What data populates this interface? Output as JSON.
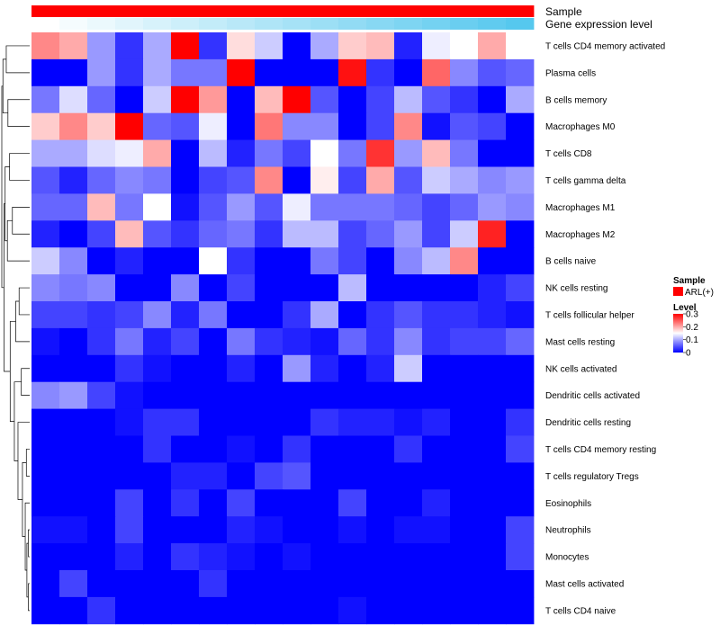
{
  "chart_data": {
    "type": "heatmap",
    "title": "",
    "annotations": {
      "top": [
        {
          "name": "Sample",
          "kind": "categorical",
          "label": "Sample"
        },
        {
          "name": "Gene expression level",
          "kind": "gradient",
          "label": "Gene expression level",
          "low_color": "#ffffff",
          "high_color": "#56c8ee"
        }
      ]
    },
    "row_labels": [
      "T cells CD4 memory activated",
      "Plasma cells",
      "B cells memory",
      "Macrophages M0",
      "T cells CD8",
      "T cells gamma delta",
      "Macrophages M1",
      "Macrophages M2",
      "B cells naive",
      "NK cells resting",
      "T cells follicular helper",
      "Mast cells resting",
      "NK cells activated",
      "Dendritic cells activated",
      "Dendritic cells resting",
      "T cells CD4 memory resting",
      "T cells regulatory  Tregs",
      "Eosinophils",
      "Neutrophils",
      "Monocytes",
      "Mast cells activated",
      "T cells CD4 naive"
    ],
    "n_columns": 18,
    "values": [
      [
        0.22,
        0.2,
        0.09,
        0.03,
        0.1,
        0.3,
        0.03,
        0.17,
        0.12,
        0.0,
        0.1,
        0.18,
        0.19,
        0.02,
        0.14,
        0.15,
        0.2,
        0.15
      ],
      [
        0.0,
        0.0,
        0.09,
        0.03,
        0.1,
        0.07,
        0.07,
        0.3,
        0.0,
        0.0,
        0.0,
        0.29,
        0.03,
        0.0,
        0.24,
        0.08,
        0.05,
        0.06
      ],
      [
        0.07,
        0.13,
        0.06,
        0.0,
        0.12,
        0.3,
        0.21,
        0.0,
        0.19,
        0.3,
        0.05,
        0.0,
        0.04,
        0.11,
        0.05,
        0.03,
        0.0,
        0.1
      ],
      [
        0.18,
        0.22,
        0.18,
        0.3,
        0.06,
        0.05,
        0.14,
        0.0,
        0.23,
        0.08,
        0.08,
        0.0,
        0.04,
        0.22,
        0.01,
        0.05,
        0.04,
        0.0
      ],
      [
        0.1,
        0.1,
        0.13,
        0.14,
        0.2,
        0.0,
        0.11,
        0.02,
        0.07,
        0.04,
        0.15,
        0.07,
        0.27,
        0.09,
        0.19,
        0.07,
        0.0,
        0.0
      ],
      [
        0.05,
        0.02,
        0.06,
        0.08,
        0.07,
        0.0,
        0.04,
        0.05,
        0.22,
        0.0,
        0.16,
        0.04,
        0.2,
        0.05,
        0.12,
        0.1,
        0.08,
        0.09
      ],
      [
        0.06,
        0.06,
        0.19,
        0.07,
        0.15,
        0.01,
        0.05,
        0.09,
        0.05,
        0.14,
        0.07,
        0.07,
        0.07,
        0.06,
        0.04,
        0.06,
        0.09,
        0.08
      ],
      [
        0.02,
        0.0,
        0.04,
        0.19,
        0.05,
        0.03,
        0.06,
        0.07,
        0.03,
        0.11,
        0.11,
        0.04,
        0.06,
        0.09,
        0.04,
        0.12,
        0.28,
        0.0
      ],
      [
        0.12,
        0.08,
        0.0,
        0.02,
        0.0,
        0.0,
        0.15,
        0.03,
        0.0,
        0.0,
        0.07,
        0.04,
        0.0,
        0.08,
        0.11,
        0.22,
        0.0,
        0.0
      ],
      [
        0.08,
        0.07,
        0.08,
        0.0,
        0.0,
        0.08,
        0.0,
        0.04,
        0.0,
        0.0,
        0.0,
        0.11,
        0.0,
        0.0,
        0.0,
        0.0,
        0.02,
        0.04
      ],
      [
        0.04,
        0.04,
        0.03,
        0.04,
        0.08,
        0.02,
        0.07,
        0.0,
        0.0,
        0.03,
        0.1,
        0.0,
        0.03,
        0.05,
        0.03,
        0.03,
        0.02,
        0.01
      ],
      [
        0.01,
        0.0,
        0.03,
        0.07,
        0.02,
        0.04,
        0.0,
        0.07,
        0.03,
        0.02,
        0.01,
        0.06,
        0.03,
        0.08,
        0.03,
        0.04,
        0.04,
        0.06
      ],
      [
        0.0,
        0.0,
        0.0,
        0.03,
        0.01,
        0.0,
        0.0,
        0.02,
        0.0,
        0.09,
        0.02,
        0.0,
        0.02,
        0.12,
        0.0,
        0.0,
        0.0,
        0.0
      ],
      [
        0.08,
        0.09,
        0.04,
        0.01,
        0.0,
        0.0,
        0.0,
        0.0,
        0.0,
        0.0,
        0.0,
        0.0,
        0.0,
        0.0,
        0.0,
        0.0,
        0.0,
        0.0
      ],
      [
        0.0,
        0.0,
        0.0,
        0.01,
        0.03,
        0.03,
        0.0,
        0.0,
        0.0,
        0.0,
        0.03,
        0.02,
        0.02,
        0.01,
        0.02,
        0.0,
        0.0,
        0.03
      ],
      [
        0.0,
        0.0,
        0.0,
        0.0,
        0.03,
        0.0,
        0.0,
        0.01,
        0.0,
        0.03,
        0.0,
        0.0,
        0.0,
        0.03,
        0.0,
        0.0,
        0.0,
        0.04
      ],
      [
        0.0,
        0.0,
        0.0,
        0.0,
        0.0,
        0.02,
        0.02,
        0.0,
        0.04,
        0.05,
        0.0,
        0.0,
        0.0,
        0.0,
        0.0,
        0.0,
        0.0,
        0.0
      ],
      [
        0.0,
        0.0,
        0.0,
        0.04,
        0.0,
        0.03,
        0.0,
        0.04,
        0.0,
        0.0,
        0.0,
        0.04,
        0.0,
        0.0,
        0.02,
        0.0,
        0.0,
        0.0
      ],
      [
        0.01,
        0.01,
        0.0,
        0.04,
        0.0,
        0.0,
        0.0,
        0.02,
        0.01,
        0.0,
        0.0,
        0.01,
        0.0,
        0.01,
        0.01,
        0.0,
        0.0,
        0.04
      ],
      [
        0.0,
        0.0,
        0.0,
        0.02,
        0.0,
        0.03,
        0.02,
        0.01,
        0.0,
        0.01,
        0.0,
        0.0,
        0.0,
        0.0,
        0.0,
        0.0,
        0.0,
        0.04
      ],
      [
        0.0,
        0.04,
        0.0,
        0.0,
        0.0,
        0.0,
        0.03,
        0.0,
        0.0,
        0.0,
        0.0,
        0.0,
        0.0,
        0.0,
        0.0,
        0.0,
        0.0,
        0.0
      ],
      [
        0.0,
        0.0,
        0.03,
        0.0,
        0.0,
        0.0,
        0.0,
        0.0,
        0.0,
        0.0,
        0.0,
        0.01,
        0.0,
        0.0,
        0.0,
        0.0,
        0.0,
        0.0
      ]
    ],
    "expression_level": [
      0.0,
      0.05,
      0.1,
      0.15,
      0.2,
      0.25,
      0.3,
      0.35,
      0.4,
      0.45,
      0.5,
      0.55,
      0.6,
      0.65,
      0.7,
      0.75,
      0.8,
      0.85
    ],
    "color_scale": {
      "min": 0,
      "max": 0.3,
      "low": "#0000ff",
      "mid": "#ffffff",
      "mid_value": 0.15,
      "high": "#ff0000"
    },
    "dendrogram": {
      "order": [
        0,
        1,
        2,
        3,
        4,
        5,
        6,
        7,
        8,
        9,
        10,
        11,
        12,
        13,
        14,
        15,
        16,
        17,
        18,
        19,
        20,
        21
      ],
      "merges": [
        [
          -19,
          -20,
          0.05
        ],
        [
          -21,
          -22,
          0.05
        ],
        [
          1,
          2,
          0.1
        ],
        [
          -18,
          3,
          0.16
        ],
        [
          -16,
          -17,
          0.12
        ],
        [
          4,
          5,
          0.26
        ],
        [
          -15,
          6,
          0.42
        ],
        [
          -13,
          -14,
          0.3
        ],
        [
          7,
          8,
          0.55
        ],
        [
          -10,
          -11,
          0.38
        ],
        [
          -12,
          10,
          0.5
        ],
        [
          9,
          11,
          0.7
        ],
        [
          -7,
          -8,
          0.62
        ],
        [
          -5,
          -6,
          0.72
        ],
        [
          -9,
          13,
          0.8
        ],
        [
          14,
          15,
          0.88
        ],
        [
          12,
          16,
          0.92
        ],
        [
          -3,
          -4,
          0.78
        ],
        [
          -1,
          -2,
          0.84
        ],
        [
          18,
          19,
          0.96
        ],
        [
          17,
          20,
          1.0
        ]
      ]
    },
    "legend": {
      "sample_title": "Sample",
      "sample_items": [
        {
          "label": "ARL(+)",
          "color": "#ff0000"
        }
      ],
      "level_title": "Level",
      "level_ticks": [
        "0.3",
        "0.2",
        "0.1",
        "0"
      ]
    }
  }
}
